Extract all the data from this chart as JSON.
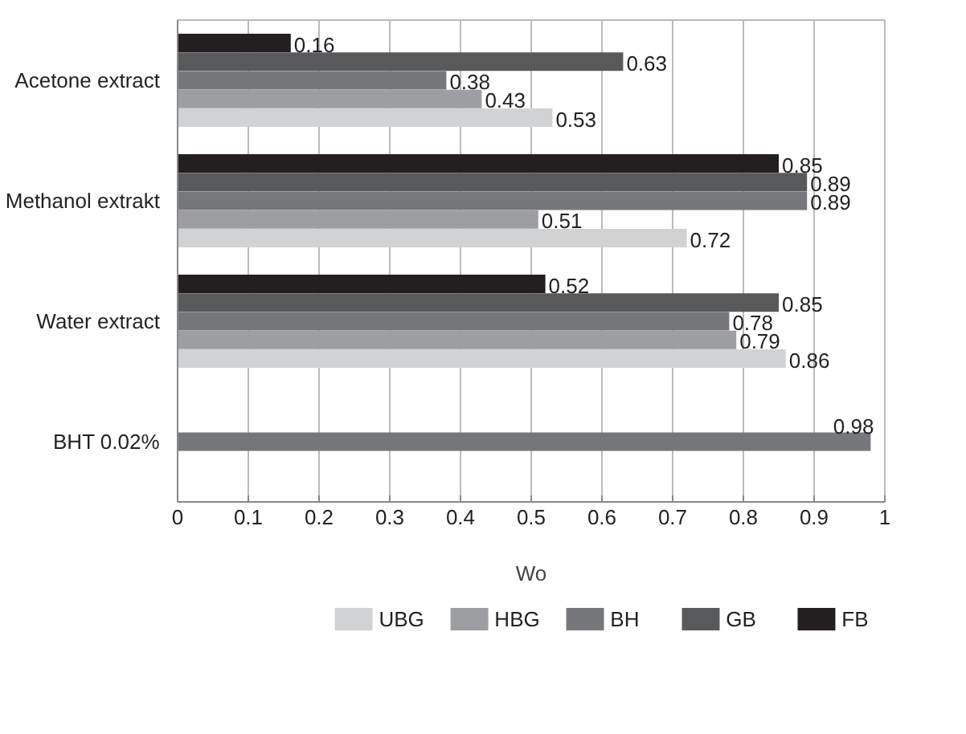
{
  "chart_data": {
    "type": "bar",
    "orientation": "horizontal",
    "xlabel": "Wo",
    "categories": [
      "Acetone extract",
      "Methanol extrakt",
      "Water extract",
      "BHT 0.02%"
    ],
    "series": [
      {
        "name": "UBG",
        "color": "#d1d2d4",
        "values": [
          0.53,
          0.72,
          0.86,
          null
        ]
      },
      {
        "name": "HBG",
        "color": "#9d9ea1",
        "values": [
          0.43,
          0.51,
          0.79,
          null
        ]
      },
      {
        "name": "BH",
        "color": "#76777b",
        "values": [
          0.38,
          0.89,
          0.78,
          0.98
        ]
      },
      {
        "name": "GB",
        "color": "#58595b",
        "values": [
          0.63,
          0.89,
          0.85,
          null
        ]
      },
      {
        "name": "FB",
        "color": "#231f20",
        "values": [
          0.16,
          0.85,
          0.52,
          null
        ]
      }
    ],
    "xlim": [
      0,
      1
    ],
    "xticks": [
      0,
      0.1,
      0.2,
      0.3,
      0.4,
      0.5,
      0.6,
      0.7,
      0.8,
      0.9,
      1
    ],
    "grid": "x",
    "legend": "bottom",
    "data_labels": true
  }
}
